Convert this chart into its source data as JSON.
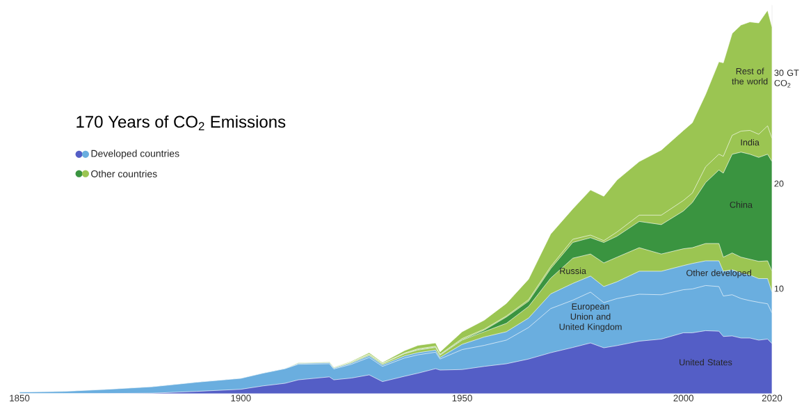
{
  "chart_data": {
    "type": "area",
    "stacked": true,
    "title": "170 Years of CO$_{2}$ Emissions",
    "annotations": [
      "Developed countries",
      "Other countries"
    ],
    "x": [
      1850,
      1860,
      1870,
      1880,
      1890,
      1900,
      1905,
      1910,
      1913,
      1920,
      1921,
      1925,
      1929,
      1932,
      1937,
      1940,
      1944,
      1945,
      1950,
      1955,
      1960,
      1965,
      1970,
      1975,
      1979,
      1982,
      1985,
      1990,
      1995,
      2000,
      2002,
      2005,
      2008,
      2009,
      2011,
      2013,
      2015,
      2017,
      2019,
      2020
    ],
    "xlim": [
      1850,
      2020
    ],
    "xticks": [
      1850,
      1900,
      1950,
      2000,
      2020
    ],
    "ylim": [
      0,
      37
    ],
    "yticks": [
      10,
      20,
      {
        "value": 30,
        "label": "30 GT CO$_{2}$"
      }
    ],
    "series": [
      {
        "name": "United States",
        "color": "#545ec6",
        "values": [
          0,
          0,
          0.02,
          0.05,
          0.22,
          0.42,
          0.74,
          0.99,
          1.32,
          1.6,
          1.32,
          1.49,
          1.79,
          1.15,
          1.66,
          1.95,
          2.38,
          2.25,
          2.3,
          2.6,
          2.85,
          3.3,
          3.9,
          4.4,
          4.83,
          4.37,
          4.58,
          5.0,
          5.2,
          5.8,
          5.8,
          6.0,
          5.95,
          5.45,
          5.5,
          5.3,
          5.3,
          5.1,
          5.2,
          4.77
        ]
      },
      {
        "name": "European Union and United Kingdom",
        "color": "#6aaedf",
        "values": [
          0.15,
          0.22,
          0.4,
          0.61,
          0.87,
          1.04,
          1.21,
          1.39,
          1.48,
          1.25,
          1.03,
          1.31,
          1.66,
          1.45,
          1.74,
          1.75,
          1.57,
          1.05,
          1.9,
          2.0,
          2.25,
          3.0,
          4.2,
          4.5,
          4.84,
          4.3,
          4.48,
          4.47,
          4.22,
          4.1,
          4.17,
          4.3,
          4.25,
          3.85,
          3.92,
          3.76,
          3.56,
          3.6,
          3.36,
          2.91
        ]
      },
      {
        "name": "Other developed",
        "color": "#6aaedf",
        "values": [
          0,
          0,
          0,
          0,
          0,
          0,
          0,
          0,
          0.08,
          0.1,
          0.08,
          0.12,
          0.17,
          0.15,
          0.2,
          0.2,
          0.2,
          0.15,
          0.5,
          0.8,
          0.8,
          0.9,
          1.4,
          1.6,
          1.53,
          1.53,
          1.6,
          2.19,
          2.24,
          2.3,
          2.43,
          2.35,
          2.45,
          2.36,
          2.38,
          2.44,
          2.44,
          2.26,
          2.4,
          1.99
        ]
      },
      {
        "name": "Russia",
        "color": "#9bc552",
        "values": [
          0,
          0,
          0,
          0,
          0,
          0,
          0,
          0,
          0.05,
          0.05,
          0.05,
          0.08,
          0.1,
          0.1,
          0.2,
          0.25,
          0.25,
          0.2,
          0.4,
          0.5,
          0.8,
          1.1,
          1.5,
          2.4,
          2.1,
          2.25,
          2.34,
          2.24,
          1.64,
          1.6,
          1.5,
          1.65,
          1.65,
          1.34,
          1.6,
          1.5,
          1.5,
          1.64,
          1.69,
          1.99
        ]
      },
      {
        "name": "China",
        "color": "#3a9440",
        "values": [
          0,
          0,
          0,
          0,
          0,
          0,
          0,
          0,
          0,
          0,
          0,
          0,
          0.01,
          0.01,
          0.02,
          0.05,
          0.05,
          0.05,
          0.05,
          0.15,
          0.6,
          0.5,
          0.9,
          1.5,
          1.55,
          1.95,
          2.0,
          2.5,
          2.8,
          3.6,
          4.3,
          5.8,
          7.0,
          8.0,
          9.4,
          10.0,
          10.0,
          9.9,
          10.15,
          10.44
        ]
      },
      {
        "name": "India",
        "color": "#9bc552",
        "values": [
          0,
          0,
          0,
          0,
          0,
          0,
          0,
          0,
          0,
          0.02,
          0.02,
          0.03,
          0.05,
          0.04,
          0.06,
          0.07,
          0.07,
          0.05,
          0.1,
          0.1,
          0.1,
          0.15,
          0.2,
          0.3,
          0.25,
          0.17,
          0.4,
          0.6,
          0.9,
          1.0,
          0.9,
          1.5,
          1.5,
          1.6,
          1.8,
          2.0,
          2.27,
          2.2,
          2.7,
          2.2
        ]
      },
      {
        "name": "Rest of the world",
        "color": "#9bc552",
        "values": [
          0,
          0,
          0,
          0,
          0,
          0,
          0,
          0,
          0,
          0.03,
          0.03,
          0.07,
          0.12,
          0.08,
          0.22,
          0.33,
          0.31,
          0.22,
          0.65,
          0.85,
          1.2,
          1.95,
          3.1,
          2.9,
          4.3,
          4.23,
          4.95,
          5.1,
          6.2,
          6.67,
          6.7,
          6.9,
          8.8,
          8.9,
          9.7,
          10.1,
          10.33,
          10.6,
          11.0,
          10.6
        ]
      }
    ]
  }
}
